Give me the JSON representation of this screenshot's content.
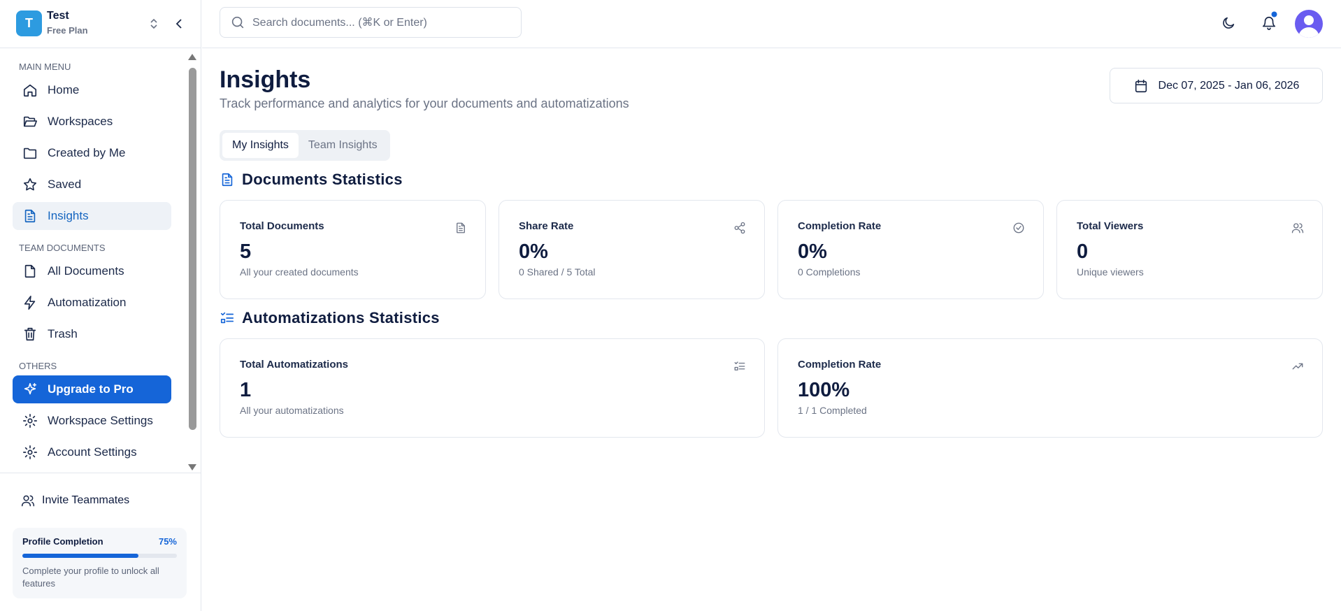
{
  "workspace": {
    "name": "Test",
    "plan": "Free Plan",
    "initial": "T"
  },
  "search_placeholder": "Search documents... (⌘K or Enter)",
  "sidebar": {
    "sections": [
      {
        "title": "MAIN MENU",
        "items": [
          {
            "label": "Home",
            "icon": "home"
          },
          {
            "label": "Workspaces",
            "icon": "folder-open"
          },
          {
            "label": "Created by Me",
            "icon": "folder"
          },
          {
            "label": "Saved",
            "icon": "star"
          },
          {
            "label": "Insights",
            "icon": "doc",
            "active": true
          }
        ]
      },
      {
        "title": "TEAM DOCUMENTS",
        "items": [
          {
            "label": "All Documents",
            "icon": "file"
          },
          {
            "label": "Automatization",
            "icon": "bolt"
          },
          {
            "label": "Trash",
            "icon": "trash"
          }
        ]
      },
      {
        "title": "OTHERS",
        "items": [
          {
            "label": "Upgrade to Pro",
            "icon": "sparkle",
            "primary": true
          },
          {
            "label": "Workspace Settings",
            "icon": "gear"
          },
          {
            "label": "Account Settings",
            "icon": "gear"
          }
        ]
      }
    ],
    "invite": "Invite Teammates",
    "profile": {
      "title": "Profile Completion",
      "percent": 75,
      "percent_label": "75%",
      "note": "Complete your profile to unlock all features"
    }
  },
  "page": {
    "title": "Insights",
    "subtitle": "Track performance and analytics for your documents and automatizations",
    "date_range": "Dec 07, 2025 - Jan 06, 2026",
    "tabs": [
      {
        "label": "My Insights",
        "active": true
      },
      {
        "label": "Team Insights"
      }
    ],
    "sections": [
      {
        "title": "Documents Statistics",
        "icon": "doc",
        "cards": [
          {
            "title": "Total Documents",
            "value": "5",
            "note": "All your created documents",
            "icon": "doc"
          },
          {
            "title": "Share Rate",
            "value": "0%",
            "note": "0 Shared / 5 Total",
            "icon": "share"
          },
          {
            "title": "Completion Rate",
            "value": "0%",
            "note": "0 Completions",
            "icon": "check"
          },
          {
            "title": "Total Viewers",
            "value": "0",
            "note": "Unique viewers",
            "icon": "users"
          }
        ]
      },
      {
        "title": "Automatizations Statistics",
        "icon": "list",
        "cards": [
          {
            "title": "Total Automatizations",
            "value": "1",
            "note": "All your automatizations",
            "icon": "list"
          },
          {
            "title": "Completion Rate",
            "value": "100%",
            "note": "1 / 1 Completed",
            "icon": "trend"
          }
        ]
      }
    ]
  }
}
